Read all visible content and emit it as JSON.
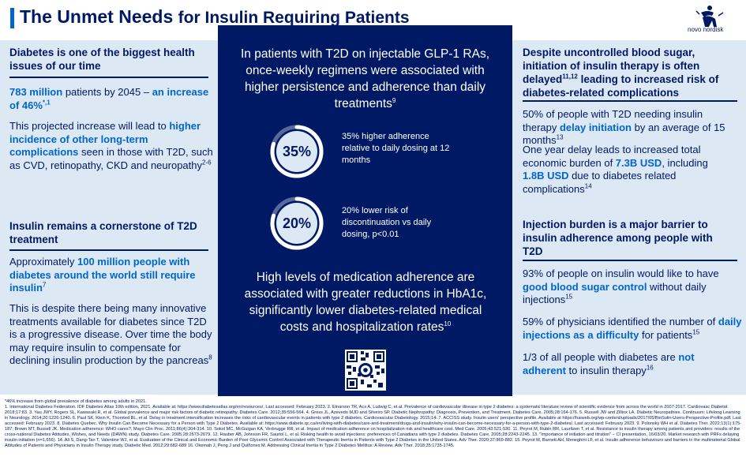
{
  "header": {
    "title_bold": "The Unmet Needs",
    "title_rest": "for Insulin Requiring Patients",
    "logo_text": "novo nordisk"
  },
  "left": {
    "s1": {
      "heading": "Diabetes is one of the biggest health issues of our time",
      "p1_hl1": "783 million",
      "p1_mid": " patients by 2045 – ",
      "p1_hl2": "an increase of 46%",
      "p1_sup": "*,1",
      "p2_a": "This projected increase will lead to ",
      "p2_hl": "higher incidence of other long-term complications",
      "p2_b": " seen in those with T2D, such as CVD, retinopathy, CKD and neuropathy",
      "p2_sup": "2-6"
    },
    "s2": {
      "heading": "Insulin remains a cornerstone of T2D treatment",
      "p1_a": "Approximately ",
      "p1_hl": "100 million people with diabetes around the world still require insulin",
      "p1_sup": "7",
      "p2": "This is despite there being many innovative treatments available for diabetes since T2D is a progressive disease. Over time the body may require insulin to compensate for declining insulin production by the pancreas",
      "p2_sup": "8"
    }
  },
  "center": {
    "intro": "In patients with T2D on injectable GLP-1 RAs, once-weekly regimens were associated with higher persistence and adherence than daily treatments",
    "intro_sup": "9",
    "stat1": {
      "value": "35%",
      "text": "35% higher adherence relative to daily dosing at 12 months",
      "fraction": 0.8
    },
    "stat2": {
      "value": "20%",
      "text": "20% lower risk of discontinuation vs daily dosing, p<0.01",
      "fraction": 0.8
    },
    "outro": "High levels of medication adherence are associated with greater reductions in HbA1c, significantly lower diabetes-related medical costs and hospitalization rates",
    "outro_sup": "10"
  },
  "right": {
    "s1": {
      "heading_a": "Despite uncontrolled blood sugar, initiation of insulin therapy is often delayed",
      "heading_sup": "11,12",
      "heading_b": " leading to increased risk of diabetes-related complications",
      "p1_a": "50% of people with T2D needing insulin therapy ",
      "p1_hl": "delay initiation",
      "p1_b": " by an average of 15 months",
      "p1_sup": "13",
      "p2_a": "One year delay leads to increased total economic burden of ",
      "p2_hl1": "7.3B USD",
      "p2_mid": ", including ",
      "p2_hl2": "1.8B USD",
      "p2_b": " due to diabetes related complications",
      "p2_sup": "14"
    },
    "s2": {
      "heading": "Injection burden is a major barrier to insulin adherence among people with T2D",
      "p1_a": "93% of people on insulin would like to have ",
      "p1_hl": "good blood sugar control",
      "p1_b": " without daily injections",
      "p1_sup": "15",
      "p2_a": "59% of physicians identified the number of ",
      "p2_hl": "daily injections as a difficulty",
      "p2_b": " for patients",
      "p2_sup": "15",
      "p3_a": "1/3 of all people with diabetes are ",
      "p3_hl": "not adherent",
      "p3_b": " to insulin therapy",
      "p3_sup": "16"
    }
  },
  "footnotes": {
    "line1": "*46% increase from global prevalence of diabetes among adults in 2021.",
    "refs": "1. International Diabetes Federation. IDF Diabetes Atlas 10th edition, 2021. Available at: https://www.diabetesatlas.org/en/resources/. Last accessed: February 2023. 2. Einarson TR, Acs A, Ludwig C, et al. Prevalence of cardiovascular disease in type 2 diabetes: a systematic literature review of scientific evidence from across the world in 2007-2017. Cardiovasc Diabetol. 2018;17:83. 3. Yau JWY, Rogers SL, Kawasaki R, et al. Global prevalence and major risk factors of diabetic retinopathy. Diabetes Care. 2012;35:556-564. 4. Gross JL, Azevedo MJD and Silveiro SP. Diabetic Nephropathy: Diagnosis, Prevention, and Treatment. Diabetes Care. 2005;28:164-176. 5. Russell JW and Zilliox LA. Diabetic Neuropathies. Continuum: Lifelong Learning in Neurology. 2014;20:1226-1240. 6. Paul SK, Klein K, Thorsted BL, et al. Delay in treatment intensification increases the risks of cardiovascular events in patients with type 2 diabetes. Cardiovascular Diabetology. 2015;14: 7. ACCISS study. Insulin users' perspective profile. Available at https://haiweb.org/wp-content/uploads/2017/05/BioSulin-Users-Perspective-Profile.pdf. Last accessed: February 2023. 8. Diabetes Quebec. Why Insulin Can Become Necessary for a Person with Type 2 Diabetes. Available at: https://www.diabete.qc.ca/en/living-with-diabetes/care-and-treatment/drugs-and-insulin/why-insulin-can-become-necessary-for-a-person-with-type-2-diabetes/. Last accessed: February 2023. 9. Polonsky WH et al. Diabetes Ther. 2022;13(1):175-187; Brown MT, Bussell JK. Medication adherence: WHO cares?. Mayo Clin Proc. 2011;86(4):304-314. 10. Sokol MC, McGuigan KA, Verbrugge RR, et al. Impact of medication adherence on hospitalization risk and healthcare cost. Med Care. 2005;43:521-530. 11. Peyrot M, Rubin RR, Lauritzen T, et al. Resistance to insulin therapy among patients and providers: results of the cross-national Diabetes Attitudes, Wishes, and Needs (DAWN) study. Diabetes Care. 2005;28:2673-2679. 12. Hauber AB, Johnson FR, Sauriol L, et al. Risking health to avoid injections: preferences of Canadians with type 2 diabetes. Diabetes Care. 2005;28:2243-2245. 13. \"Importance of initiation and titration\" – CI presentation, 16/03/20. Market research with PRFs delaying insulin initiation (n=1,656). 14. Ali S, Dang-Tan T, Valentine WJ, et al. Evaluation of the Clinical and Economic Burden of Poor Glycemic Control Associated with Therapeutic Inertia in Patients with Type 2 Diabetes in the United States. Adv Ther. 2020;37:869-882. 15. Peyrot M, Barnett AH, Meneghini LF, et al. Insulin adherence behaviours and barriers in the multinational Global Attitudes of Patients and Physicians in Insulin Therapy study. Diabetic Med. 2012;29:682-689 16. Okemah J, Peng J and Quiñones M. Addressing Clinical Inertia in Type 2 Diabetes Mellitus: A Review. Adv Ther. 2018;35:1735-1745."
  },
  "colors": {
    "navy": "#001965",
    "accent": "#0066cc",
    "panel": "#dde8f5"
  }
}
